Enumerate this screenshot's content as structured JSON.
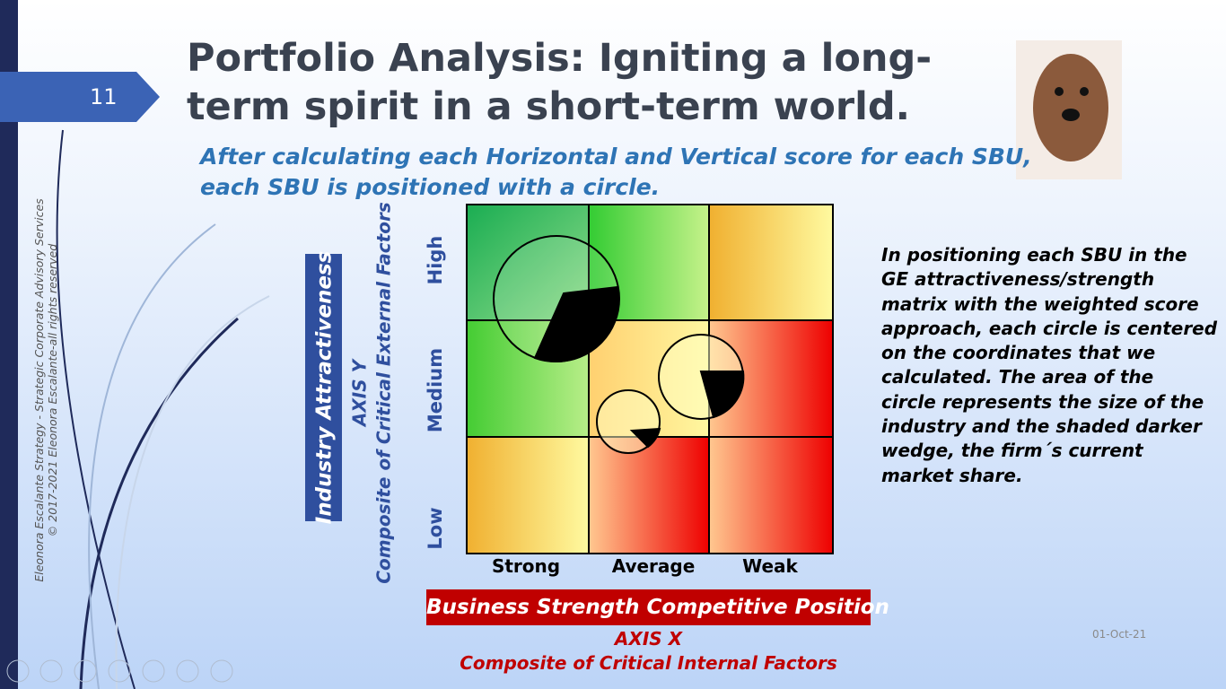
{
  "slide_number": "11",
  "title": [
    "Portfolio Analysis: Igniting a long-",
    "term spirit in a short-term world."
  ],
  "subtitle": [
    "After calculating each Horizontal and Vertical score for each SBU,",
    "each SBU is positioned with a circle."
  ],
  "side_text": [
    "Eleonora Escalante Strategy - Strategic Corporate Advisory Services",
    "© 2017-2021 Eleonora Escalante-all rights reserved"
  ],
  "y_axis": {
    "box": "Industry Attractiveness",
    "axis": "AXIS Y",
    "desc": "Composite of Critical External Factors",
    "rows": [
      "High",
      "Medium",
      "Low"
    ]
  },
  "x_axis": {
    "columns": [
      "Strong",
      "Average",
      "Weak"
    ],
    "box": "Business Strength Competitive Position",
    "axis": "AXIS X",
    "desc": "Composite of Critical Internal Factors"
  },
  "paragraph": [
    "In positioning each SBU in the",
    "GE attractiveness/strength",
    "matrix with the weighted score",
    "approach, each circle is centered",
    "on the coordinates that we",
    "calculated. The area of the",
    "circle represents the size of the",
    "industry and the shaded darker",
    "wedge, the firm´s current",
    "market share."
  ],
  "date": "01-Oct-21"
}
